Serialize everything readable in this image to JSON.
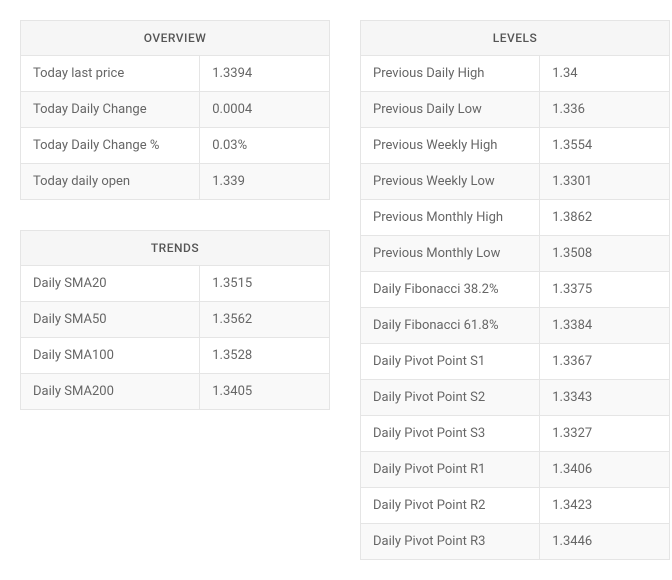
{
  "colors": {
    "background": "#ffffff",
    "header_bg": "#f6f6f6",
    "row_odd_bg": "#ffffff",
    "row_even_bg": "#f9f9f9",
    "border": "#e5e5e5",
    "text": "#666666",
    "header_text": "#555555"
  },
  "overview": {
    "title": "OVERVIEW",
    "rows": [
      {
        "label": "Today last price",
        "value": "1.3394"
      },
      {
        "label": "Today Daily Change",
        "value": "0.0004"
      },
      {
        "label": "Today Daily Change %",
        "value": "0.03%"
      },
      {
        "label": "Today daily open",
        "value": "1.339"
      }
    ]
  },
  "trends": {
    "title": "TRENDS",
    "rows": [
      {
        "label": "Daily SMA20",
        "value": "1.3515"
      },
      {
        "label": "Daily SMA50",
        "value": "1.3562"
      },
      {
        "label": "Daily SMA100",
        "value": "1.3528"
      },
      {
        "label": "Daily SMA200",
        "value": "1.3405"
      }
    ]
  },
  "levels": {
    "title": "LEVELS",
    "rows": [
      {
        "label": "Previous Daily High",
        "value": "1.34"
      },
      {
        "label": "Previous Daily Low",
        "value": "1.336"
      },
      {
        "label": "Previous Weekly High",
        "value": "1.3554"
      },
      {
        "label": "Previous Weekly Low",
        "value": "1.3301"
      },
      {
        "label": "Previous Monthly High",
        "value": "1.3862"
      },
      {
        "label": "Previous Monthly Low",
        "value": "1.3508"
      },
      {
        "label": "Daily Fibonacci 38.2%",
        "value": "1.3375"
      },
      {
        "label": "Daily Fibonacci 61.8%",
        "value": "1.3384"
      },
      {
        "label": "Daily Pivot Point S1",
        "value": "1.3367"
      },
      {
        "label": "Daily Pivot Point S2",
        "value": "1.3343"
      },
      {
        "label": "Daily Pivot Point S3",
        "value": "1.3327"
      },
      {
        "label": "Daily Pivot Point R1",
        "value": "1.3406"
      },
      {
        "label": "Daily Pivot Point R2",
        "value": "1.3423"
      },
      {
        "label": "Daily Pivot Point R3",
        "value": "1.3446"
      }
    ]
  }
}
